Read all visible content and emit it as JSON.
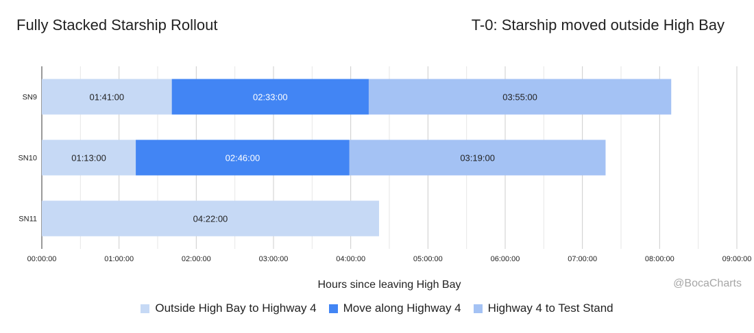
{
  "header": {
    "title": "Fully Stacked Starship Rollout",
    "subtitle": "T-0: Starship moved outside High Bay"
  },
  "credit": "@BocaCharts",
  "chart_data": {
    "type": "bar",
    "orientation": "horizontal",
    "stacked": true,
    "title": "Fully Stacked Starship Rollout",
    "subtitle": "T-0: Starship moved outside High Bay",
    "xlabel": "Hours since leaving High Bay",
    "ylabel": "",
    "xlim": [
      0,
      9
    ],
    "x_unit": "hours",
    "grid": true,
    "legend_position": "bottom",
    "x_ticks": [
      "00:00:00",
      "01:00:00",
      "02:00:00",
      "03:00:00",
      "04:00:00",
      "05:00:00",
      "06:00:00",
      "07:00:00",
      "08:00:00",
      "09:00:00"
    ],
    "categories": [
      "SN9",
      "SN10",
      "SN11"
    ],
    "series": [
      {
        "name": "Outside High Bay to Highway 4",
        "color": "#c6d9f5",
        "text_color": "#222222",
        "durations": [
          "01:41:00",
          "01:13:00",
          "04:22:00"
        ],
        "values": [
          1.6833,
          1.2167,
          4.3667
        ]
      },
      {
        "name": "Move along Highway 4",
        "color": "#4285f4",
        "text_color": "#ffffff",
        "durations": [
          "02:33:00",
          "02:46:00",
          null
        ],
        "values": [
          2.55,
          2.7667,
          0
        ]
      },
      {
        "name": "Highway 4 to Test Stand",
        "color": "#a4c2f4",
        "text_color": "#222222",
        "durations": [
          "03:55:00",
          "03:19:00",
          null
        ],
        "values": [
          3.9167,
          3.3167,
          0
        ]
      }
    ]
  }
}
